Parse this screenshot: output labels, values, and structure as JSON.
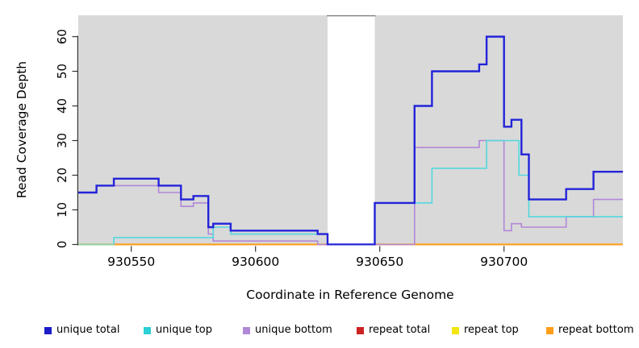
{
  "figure": {
    "y_axis_label": "Read Coverage Depth",
    "x_axis_label": "Coordinate in Reference Genome",
    "plot_bg_color": "#d9d9d9",
    "axis_color": "#333333",
    "text_color": "#000000"
  },
  "chart_data": {
    "type": "line",
    "subtype": "step-coverage",
    "title": "",
    "xlabel": "Coordinate in Reference Genome",
    "ylabel": "Read Coverage Depth",
    "x_ticks": [
      930550,
      930600,
      930650,
      930700
    ],
    "y_ticks": [
      0,
      10,
      20,
      30,
      40,
      50,
      60
    ],
    "xlim": [
      930528,
      930748
    ],
    "ylim": [
      0,
      66
    ],
    "grid": false,
    "legend_position": "bottom",
    "plot_bg": "#d9d9d9",
    "gap_region": {
      "x_start": 930629,
      "x_end": 930648,
      "fill": "#ffffff",
      "top_border_color": "#7f7f7f"
    },
    "zero_line_blend": {
      "x_start": 930528,
      "x_end": 930543,
      "color": "#8fd4a4"
    },
    "series": [
      {
        "name": "unique total",
        "color": "#2323d9",
        "width": 2.4,
        "segments": [
          [
            [
              930528,
              15
            ],
            [
              930536,
              17
            ],
            [
              930543,
              19
            ],
            [
              930561,
              17
            ],
            [
              930570,
              13
            ],
            [
              930575,
              14
            ],
            [
              930581,
              5
            ],
            [
              930583,
              6
            ],
            [
              930590,
              4
            ],
            [
              930625,
              3
            ],
            [
              930629,
              0
            ],
            [
              930648,
              12
            ],
            [
              930664,
              40
            ],
            [
              930671,
              50
            ],
            [
              930690,
              52
            ],
            [
              930693,
              60
            ],
            [
              930700,
              34
            ],
            [
              930703,
              36
            ],
            [
              930707,
              26
            ],
            [
              930710,
              13
            ],
            [
              930725,
              16
            ],
            [
              930736,
              21
            ],
            [
              930748,
              21
            ]
          ]
        ]
      },
      {
        "name": "unique top",
        "color": "#52d8de",
        "width": 1.6,
        "segments": [
          [
            [
              930528,
              0
            ],
            [
              930543,
              2
            ],
            [
              930583,
              5
            ],
            [
              930590,
              3
            ],
            [
              930629,
              0
            ],
            [
              930648,
              12
            ],
            [
              930671,
              22
            ],
            [
              930693,
              30
            ],
            [
              930706,
              20
            ],
            [
              930710,
              8
            ],
            [
              930748,
              8
            ]
          ]
        ]
      },
      {
        "name": "unique bottom",
        "color": "#b187d8",
        "width": 1.6,
        "segments": [
          [
            [
              930528,
              15
            ],
            [
              930536,
              17
            ],
            [
              930561,
              15
            ],
            [
              930570,
              11
            ],
            [
              930575,
              12
            ],
            [
              930581,
              3
            ],
            [
              930583,
              1
            ],
            [
              930625,
              0
            ],
            [
              930664,
              28
            ],
            [
              930690,
              30
            ],
            [
              930700,
              4
            ],
            [
              930703,
              6
            ],
            [
              930707,
              5
            ],
            [
              930725,
              8
            ],
            [
              930736,
              13
            ],
            [
              930748,
              13
            ]
          ]
        ]
      },
      {
        "name": "repeat total",
        "color": "#cc2222",
        "width": 1.4,
        "segments": [
          [
            [
              930528,
              0
            ],
            [
              930629,
              0
            ]
          ],
          [
            [
              930648,
              0
            ],
            [
              930748,
              0
            ]
          ]
        ]
      },
      {
        "name": "repeat top",
        "color": "#efe410",
        "width": 1.4,
        "segments": [
          [
            [
              930528,
              0
            ],
            [
              930629,
              0
            ]
          ],
          [
            [
              930648,
              0
            ],
            [
              930748,
              0
            ]
          ]
        ]
      },
      {
        "name": "repeat bottom",
        "color": "#ff9e1b",
        "width": 2.2,
        "segments": [
          [
            [
              930528,
              0
            ],
            [
              930629,
              0
            ]
          ],
          [
            [
              930648,
              0
            ],
            [
              930748,
              0
            ]
          ]
        ]
      }
    ]
  },
  "legend": {
    "items": [
      {
        "label": "unique total",
        "color": "#1c1cc8"
      },
      {
        "label": "unique top",
        "color": "#2ad0d6"
      },
      {
        "label": "unique bottom",
        "color": "#9а55cc"
      },
      {
        "label": "repeat total",
        "color": "#cc2222"
      },
      {
        "label": "repeat top",
        "color": "#f2e512"
      },
      {
        "label": "repeat bottom",
        "color": "#ff9e1b"
      }
    ]
  }
}
